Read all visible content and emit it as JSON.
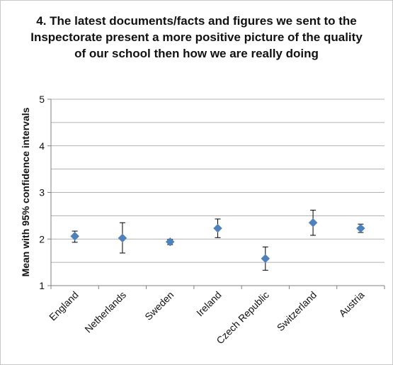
{
  "chart_data": {
    "type": "scatter",
    "title": "4. The latest documents/facts and figures we sent to the Inspectorate present a more positive picture of the quality of our school then how we are really doing",
    "xlabel": "",
    "ylabel": "Mean with 95% confidence intervals",
    "ylim": [
      1,
      5
    ],
    "yticks": [
      "1",
      "2",
      "3",
      "4",
      "5"
    ],
    "grid": true,
    "legend": "none",
    "marker": "diamond",
    "marker_color": "#4f81bd",
    "categories": [
      "England",
      "Netherlands",
      "Sweden",
      "Ireland",
      "Czech Republic",
      "Switzerland",
      "Austria"
    ],
    "means": [
      2.06,
      2.02,
      1.94,
      2.23,
      1.58,
      2.35,
      2.23
    ],
    "ci_low": [
      1.93,
      1.7,
      1.88,
      2.03,
      1.33,
      2.08,
      2.14
    ],
    "ci_high": [
      2.17,
      2.35,
      1.99,
      2.43,
      1.83,
      2.62,
      2.32
    ]
  }
}
